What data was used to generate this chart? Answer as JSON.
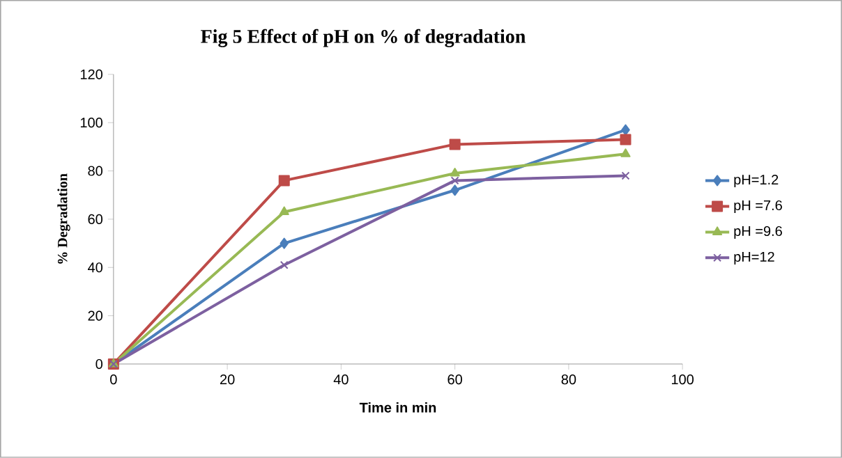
{
  "chart_data": {
    "type": "line",
    "title": "Fig 5 Effect of pH on % of degradation",
    "xlabel": "Time in min",
    "ylabel": "% Degradation",
    "x": [
      0,
      30,
      60,
      90
    ],
    "series": [
      {
        "name": "pH=1.2",
        "color": "#4a7ebb",
        "marker": "diamond",
        "values": [
          0,
          50,
          72,
          97
        ]
      },
      {
        "name": "pH =7.6",
        "color": "#be4b48",
        "marker": "square",
        "values": [
          0,
          76,
          91,
          93
        ]
      },
      {
        "name": "pH =9.6",
        "color": "#98b954",
        "marker": "triangle",
        "values": [
          0,
          63,
          79,
          87
        ]
      },
      {
        "name": "pH=12",
        "color": "#7d60a0",
        "marker": "cross",
        "values": [
          0,
          41,
          76,
          78
        ]
      }
    ],
    "xlim": [
      0,
      100
    ],
    "ylim": [
      0,
      120
    ],
    "xticks": [
      0,
      20,
      40,
      60,
      80,
      100
    ],
    "yticks": [
      0,
      20,
      40,
      60,
      80,
      100,
      120
    ],
    "grid": false,
    "legend": "right",
    "line_style": "solid"
  }
}
